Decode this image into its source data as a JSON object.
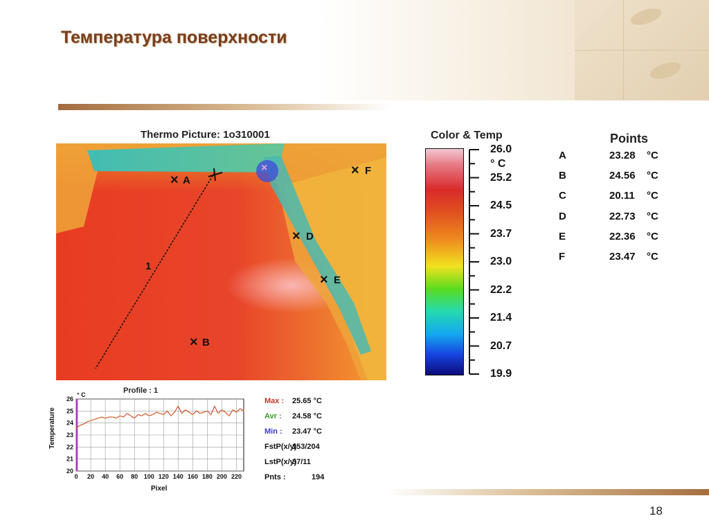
{
  "slide": {
    "title": "Температура поверхности",
    "page_number": "18"
  },
  "colors": {
    "title": "#7a3f1c",
    "max": "#c0392b",
    "avr": "#3a9a2a",
    "min": "#3c3cc8",
    "profile_line": "#cc2a1a"
  },
  "thermo": {
    "caption": "Thermo Picture:   1o310001",
    "line_label": "1",
    "markers": [
      {
        "id": "A",
        "label": "A"
      },
      {
        "id": "B",
        "label": "B"
      },
      {
        "id": "D",
        "label": "D"
      },
      {
        "id": "E",
        "label": "E"
      },
      {
        "id": "F",
        "label": "F"
      }
    ]
  },
  "colorbar": {
    "title": "Color & Temp",
    "unit": "° C",
    "ticks": [
      "26.0",
      "25.2",
      "24.5",
      "23.7",
      "23.0",
      "22.2",
      "21.4",
      "20.7",
      "19.9"
    ]
  },
  "points": {
    "title": "Points",
    "unit": "°C",
    "rows": [
      {
        "id": "A",
        "value": "23.28"
      },
      {
        "id": "B",
        "value": "24.56"
      },
      {
        "id": "C",
        "value": "20.11"
      },
      {
        "id": "D",
        "value": "22.73"
      },
      {
        "id": "E",
        "value": "22.36"
      },
      {
        "id": "F",
        "value": "23.47"
      }
    ]
  },
  "stats": [
    {
      "key": "max",
      "label": "Max :",
      "value": "25.65 °C"
    },
    {
      "key": "avr",
      "label": "Avr :",
      "value": "24.58 °C"
    },
    {
      "key": "min",
      "label": "Min :",
      "value": "23.47 °C"
    },
    {
      "key": "fst",
      "label": "FstP(x/y)",
      "value": "153/204"
    },
    {
      "key": "lst",
      "label": "LstP(x/y)",
      "value": "37/11"
    },
    {
      "key": "pnts",
      "label": "Pnts :",
      "value": "194"
    }
  ],
  "chart_data": {
    "type": "line",
    "title": "Profile :  1",
    "xlabel": "Pixel",
    "ylabel": "Temperature",
    "y_unit": "° C",
    "xlim": [
      0,
      230
    ],
    "ylim": [
      20,
      26
    ],
    "x_ticks": [
      0,
      20,
      40,
      60,
      80,
      100,
      120,
      140,
      160,
      180,
      200,
      220
    ],
    "y_ticks": [
      20,
      21,
      22,
      23,
      24,
      25,
      26
    ],
    "grid": true,
    "series": [
      {
        "values": [
          [
            0,
            23.6
          ],
          [
            5,
            23.8
          ],
          [
            10,
            23.9
          ],
          [
            15,
            24.1
          ],
          [
            20,
            24.2
          ],
          [
            25,
            24.3
          ],
          [
            30,
            24.4
          ],
          [
            35,
            24.5
          ],
          [
            40,
            24.4
          ],
          [
            45,
            24.5
          ],
          [
            50,
            24.5
          ],
          [
            55,
            24.4
          ],
          [
            60,
            24.6
          ],
          [
            65,
            24.5
          ],
          [
            70,
            24.8
          ],
          [
            75,
            24.6
          ],
          [
            80,
            24.4
          ],
          [
            85,
            24.7
          ],
          [
            90,
            24.6
          ],
          [
            95,
            24.8
          ],
          [
            100,
            24.6
          ],
          [
            105,
            24.7
          ],
          [
            110,
            24.9
          ],
          [
            115,
            24.8
          ],
          [
            120,
            24.7
          ],
          [
            125,
            25.0
          ],
          [
            130,
            24.6
          ],
          [
            135,
            24.9
          ],
          [
            140,
            25.4
          ],
          [
            145,
            24.8
          ],
          [
            150,
            25.1
          ],
          [
            155,
            24.9
          ],
          [
            160,
            24.7
          ],
          [
            165,
            25.0
          ],
          [
            170,
            24.8
          ],
          [
            175,
            24.9
          ],
          [
            180,
            25.0
          ],
          [
            185,
            24.7
          ],
          [
            190,
            25.4
          ],
          [
            195,
            24.8
          ],
          [
            200,
            25.1
          ],
          [
            205,
            24.9
          ],
          [
            210,
            24.6
          ],
          [
            215,
            25.1
          ],
          [
            220,
            24.9
          ],
          [
            225,
            25.2
          ],
          [
            230,
            25.0
          ]
        ]
      }
    ]
  }
}
